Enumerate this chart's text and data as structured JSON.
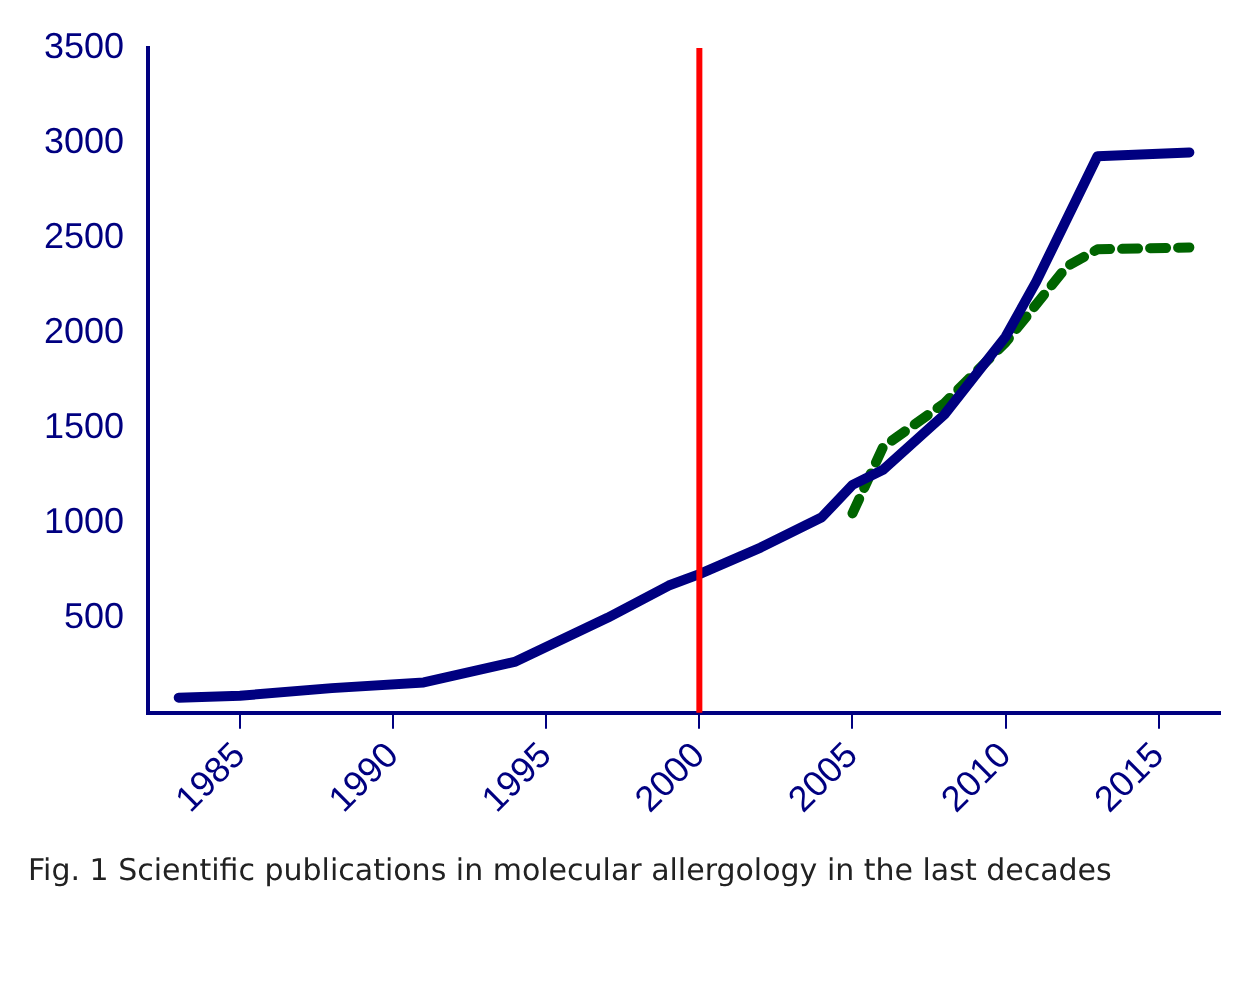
{
  "chart_data": {
    "type": "line",
    "annotations": [
      "Fig. 1  Scientific publications in molecular allergology in the last decades"
    ],
    "xlim": [
      1982,
      2017
    ],
    "xticks": [
      1985,
      1990,
      1995,
      2000,
      2005,
      2010,
      2015
    ],
    "ylim": [
      0,
      3500
    ],
    "yticks": [
      500,
      1000,
      1500,
      2000,
      2500,
      3000,
      3500
    ],
    "grid": false,
    "legend": false,
    "marker": "none",
    "ref_lines": [
      {
        "axis": "x",
        "value": 2000,
        "color": "#ff0000"
      }
    ],
    "series": [
      {
        "color": "#000080",
        "line_style": "solid",
        "x": [
          1983,
          1985,
          1988,
          1991,
          1994,
          1997,
          1999,
          2000,
          2002,
          2004,
          2005,
          2006,
          2008,
          2010,
          2011,
          2013,
          2016
        ],
        "values": [
          80,
          90,
          130,
          160,
          270,
          500,
          670,
          730,
          870,
          1030,
          1200,
          1280,
          1570,
          1980,
          2270,
          2930,
          2950
        ]
      },
      {
        "color": "#006400",
        "line_style": "dashed",
        "x": [
          2005,
          2006,
          2008,
          2010,
          2012,
          2013,
          2016
        ],
        "values": [
          1050,
          1400,
          1630,
          1950,
          2350,
          2440,
          2450
        ]
      }
    ]
  }
}
